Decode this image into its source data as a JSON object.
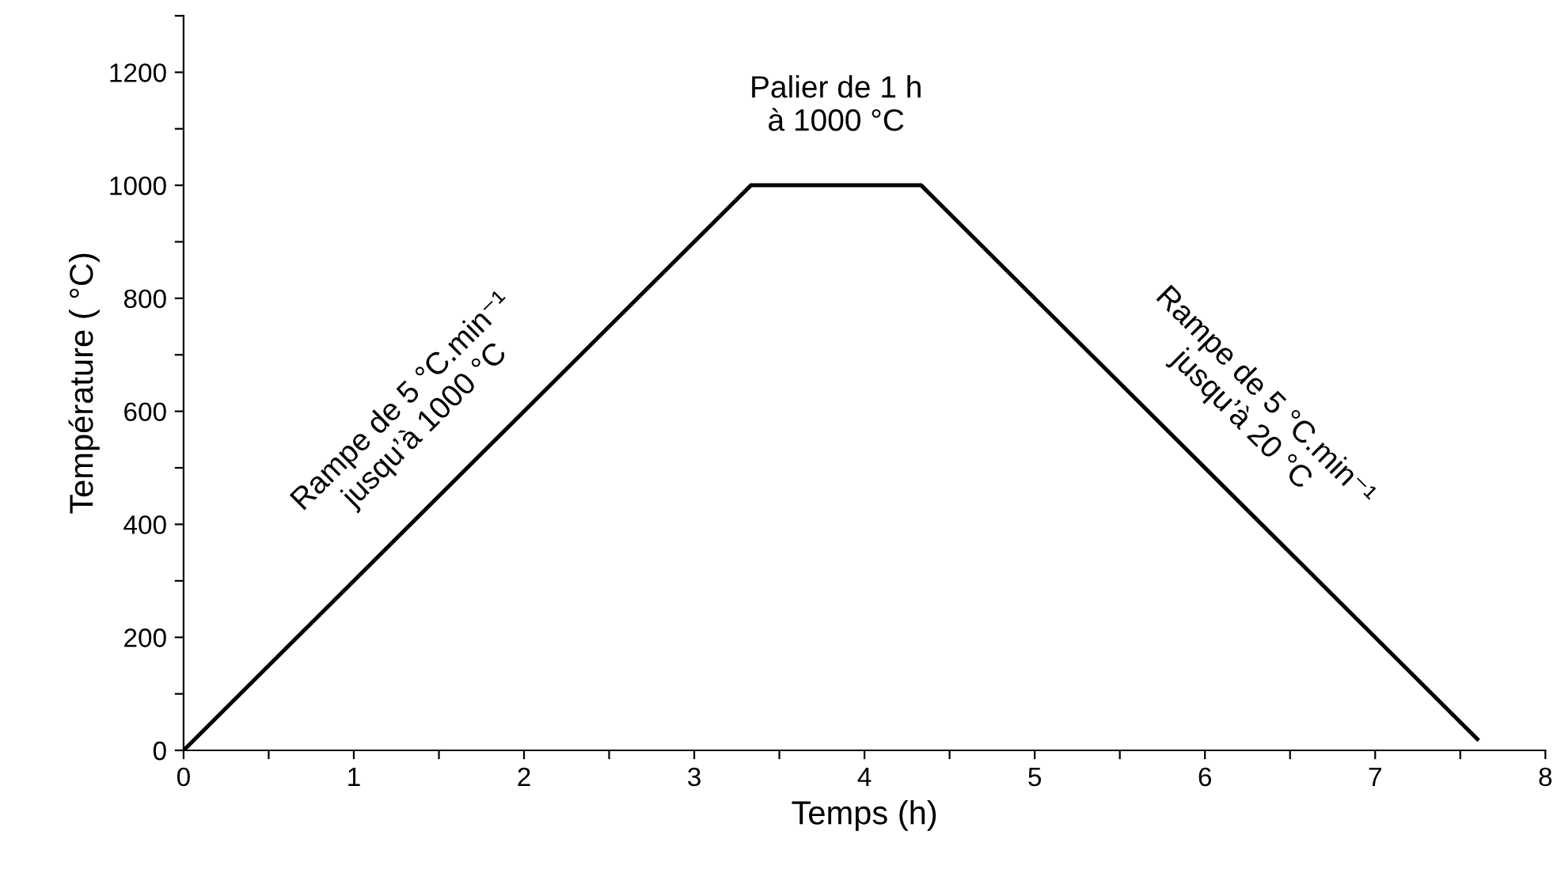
{
  "chart_data": {
    "type": "line",
    "xlabel": "Temps (h)",
    "ylabel": "Température ( °C)",
    "x": [
      0,
      3.333,
      4.333,
      7.6
    ],
    "series": [
      {
        "color": "#000000",
        "values": [
          0,
          1000,
          1000,
          20
        ]
      }
    ],
    "xlim": [
      0,
      8
    ],
    "ylim": [
      0,
      1300
    ],
    "xticks": [
      0,
      {
        "value": 0.5,
        "label": null
      },
      1,
      {
        "value": 1.5,
        "label": null
      },
      2,
      {
        "value": 2.5,
        "label": null
      },
      3,
      {
        "value": 3.5,
        "label": null
      },
      4,
      {
        "value": 4.5,
        "label": null
      },
      5,
      {
        "value": 5.5,
        "label": null
      },
      6,
      {
        "value": 6.5,
        "label": null
      },
      7,
      {
        "value": 7.5,
        "label": null
      },
      8
    ],
    "yticks": [
      0,
      {
        "value": 100,
        "label": null
      },
      200,
      {
        "value": 300,
        "label": null
      },
      400,
      {
        "value": 500,
        "label": null
      },
      600,
      {
        "value": 700,
        "label": null
      },
      800,
      {
        "value": 900,
        "label": null
      },
      1000,
      {
        "value": 1100,
        "label": null
      },
      1200,
      {
        "value": 1300,
        "label": null
      }
    ],
    "grid": false,
    "legend": false,
    "marker": "none",
    "line_style": "solid",
    "annotations": [
      "Rampe de 5 °C.min⁻¹\njusqu’à 1000 °C",
      "Palier de 1 h\nà 1000 °C",
      "Rampe de 5 °C.min⁻¹\njusqu’à 20 °C"
    ]
  }
}
